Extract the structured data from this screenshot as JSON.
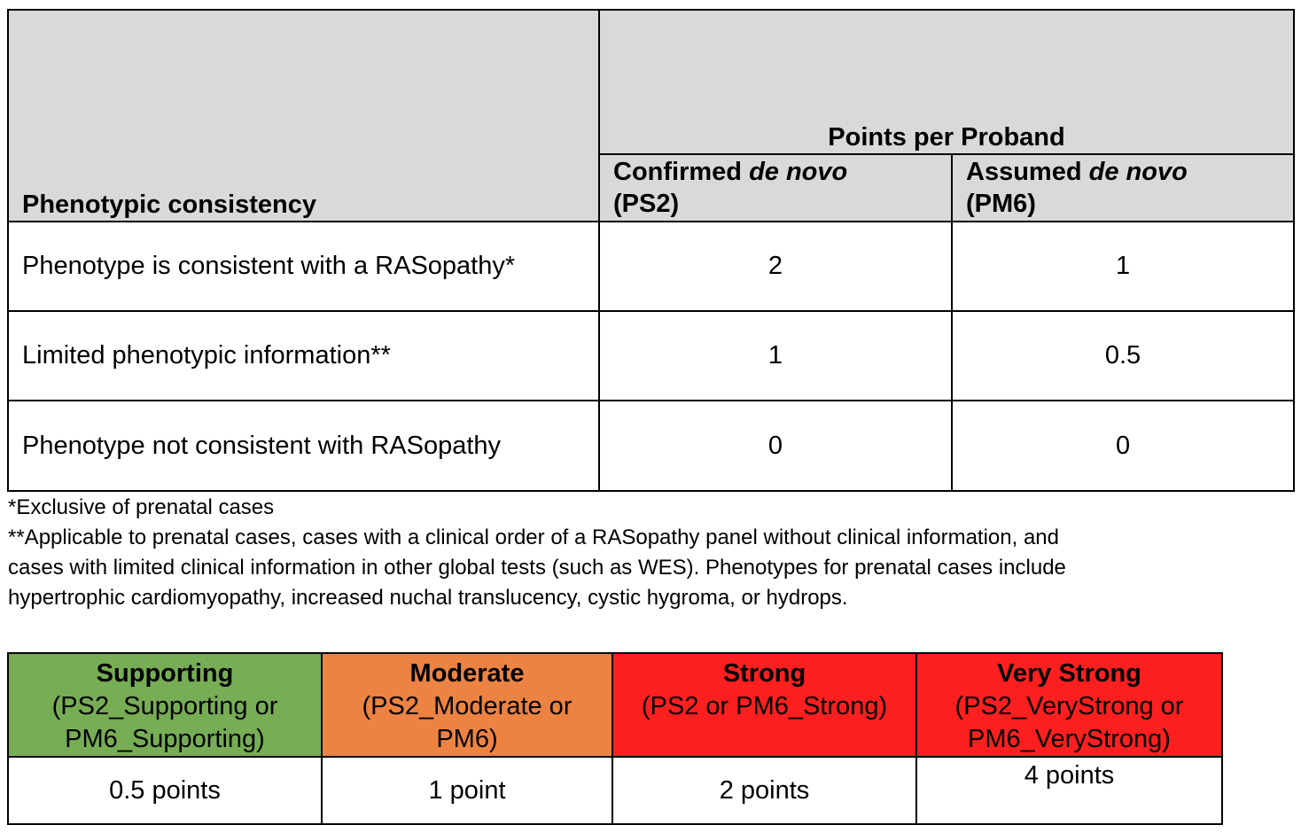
{
  "main_table": {
    "phenotypic_header": "Phenotypic consistency",
    "points_header": "Points per Proband",
    "col1_header": {
      "prefix": "Confirmed ",
      "italic": "de novo",
      "code": "(PS2)"
    },
    "col2_header": {
      "prefix": "Assumed ",
      "italic": "de novo",
      "code": "(PM6)"
    },
    "rows": [
      {
        "label": "Phenotype is consistent with a RASopathy*",
        "confirmed": "2",
        "assumed": "1"
      },
      {
        "label": "Limited phenotypic information**",
        "confirmed": "1",
        "assumed": "0.5"
      },
      {
        "label": "Phenotype not consistent with RASopathy",
        "confirmed": "0",
        "assumed": "0"
      }
    ],
    "header_bg": "#d9d9d9"
  },
  "footnotes": {
    "note1": "*Exclusive of prenatal cases",
    "note2_line1": "**Applicable to prenatal cases, cases with a clinical order of a RASopathy panel without clinical information, and",
    "note2_line2": "cases with limited clinical information in other global tests (such as WES). Phenotypes for prenatal cases include",
    "note2_line3": "hypertrophic cardiomyopathy, increased nuchal translucency, cystic hygroma, or hydrops."
  },
  "strength_table": {
    "levels": [
      {
        "name": "Supporting",
        "code_line1": "(PS2_Supporting or",
        "code_line2": "PM6_Supporting)",
        "points": "0.5 points",
        "color": "#77ad55"
      },
      {
        "name": "Moderate",
        "code_line1": "(PS2_Moderate or",
        "code_line2": "PM6)",
        "points": "1 point",
        "color": "#ec8342"
      },
      {
        "name": "Strong",
        "code_line1": "(PS2 or PM6_Strong)",
        "code_line2": "",
        "points": "2 points",
        "color": "#fc1f1f"
      },
      {
        "name": "Very Strong",
        "code_line1": "(PS2_VeryStrong or",
        "code_line2": "PM6_VeryStrong)",
        "points": "4 points",
        "color": "#fc1f1f"
      }
    ]
  }
}
